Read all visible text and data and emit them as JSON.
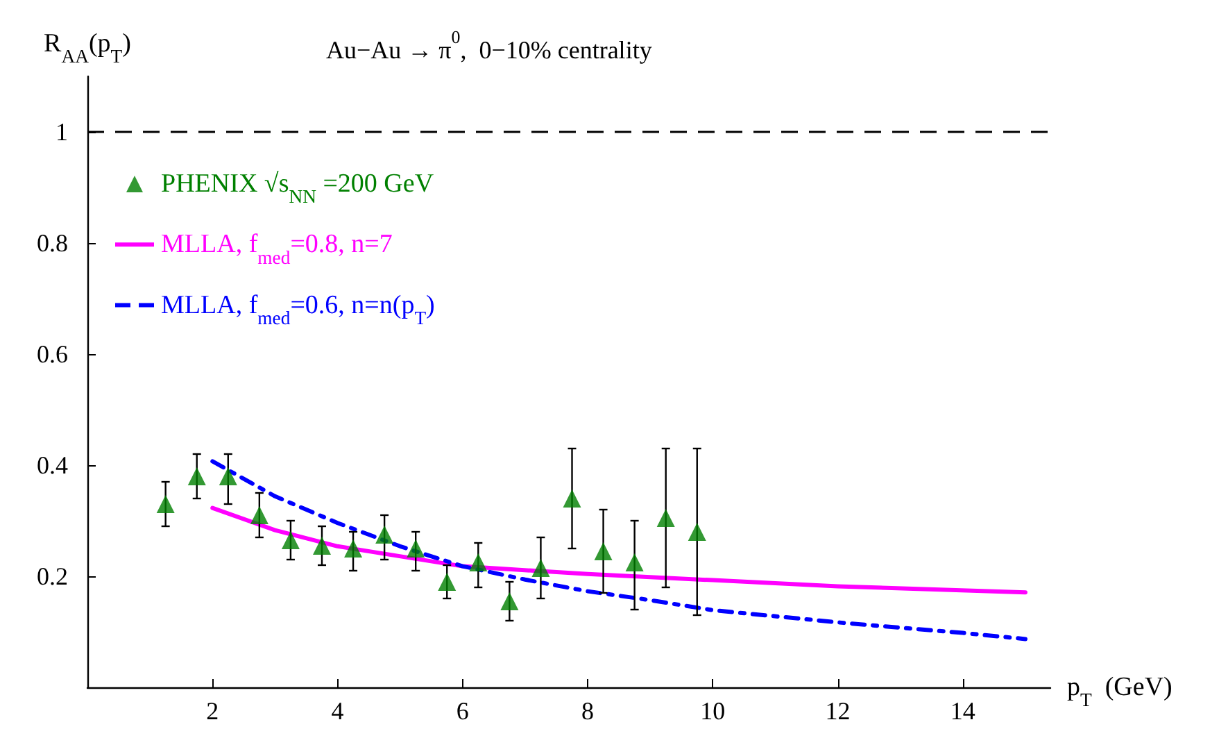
{
  "chart_data": {
    "type": "scatter",
    "title": "Au−Au → π$^{0}$,  0−10% centrality",
    "xlabel": "p$_{T}$  (GeV)",
    "ylabel": "R$_{AA}$(p$_{T}$)",
    "xlim": [
      0,
      15.4
    ],
    "xticks": [
      2,
      4,
      6,
      8,
      10,
      12,
      14
    ],
    "ylim": [
      0,
      1.1
    ],
    "yticks": [
      0.2,
      0.4,
      0.6,
      0.8,
      1
    ],
    "grid": false,
    "legend": "top left",
    "ref_lines": [
      {
        "axis": "y",
        "value": 1,
        "color": "#000000",
        "line_style": "dashed"
      }
    ],
    "series": [
      {
        "name": "PHENIX √s$_{NN}$ =200 GeV",
        "color": "#008000",
        "marker": "triangle",
        "x": [
          1.25,
          1.75,
          2.25,
          2.75,
          3.25,
          3.75,
          4.25,
          4.75,
          5.25,
          5.75,
          6.25,
          6.75,
          7.25,
          7.75,
          8.25,
          8.75,
          9.25,
          9.75
        ],
        "values": [
          0.33,
          0.38,
          0.38,
          0.31,
          0.265,
          0.255,
          0.25,
          0.275,
          0.25,
          0.19,
          0.225,
          0.155,
          0.215,
          0.34,
          0.245,
          0.225,
          0.305,
          0.28
        ],
        "errors": [
          [
            0.29,
            0.37
          ],
          [
            0.34,
            0.42
          ],
          [
            0.33,
            0.42
          ],
          [
            0.27,
            0.35
          ],
          [
            0.23,
            0.3
          ],
          [
            0.22,
            0.29
          ],
          [
            0.21,
            0.28
          ],
          [
            0.23,
            0.31
          ],
          [
            0.21,
            0.28
          ],
          [
            0.16,
            0.22
          ],
          [
            0.18,
            0.26
          ],
          [
            0.12,
            0.19
          ],
          [
            0.16,
            0.27
          ],
          [
            0.25,
            0.43
          ],
          [
            0.17,
            0.32
          ],
          [
            0.14,
            0.3
          ],
          [
            0.18,
            0.43
          ],
          [
            0.13,
            0.43
          ]
        ]
      },
      {
        "name": "MLLA, f$_{med}$=0.8, n=7",
        "type": "line",
        "color": "#ff00ff",
        "line_style": "solid",
        "x": [
          2,
          3,
          4,
          6,
          8,
          10,
          12,
          15
        ],
        "values": [
          0.323,
          0.283,
          0.254,
          0.218,
          0.204,
          0.193,
          0.182,
          0.171
        ]
      },
      {
        "name": "MLLA, f$_{med}$=0.6, n=n(p$_{T}$)",
        "type": "line",
        "color": "#0000ff",
        "line_style": "dashed",
        "x": [
          2,
          3,
          4,
          5,
          6,
          7,
          8,
          9,
          10,
          12,
          14,
          15
        ],
        "values": [
          0.407,
          0.344,
          0.296,
          0.254,
          0.218,
          0.194,
          0.173,
          0.157,
          0.139,
          0.117,
          0.098,
          0.087
        ]
      }
    ]
  }
}
